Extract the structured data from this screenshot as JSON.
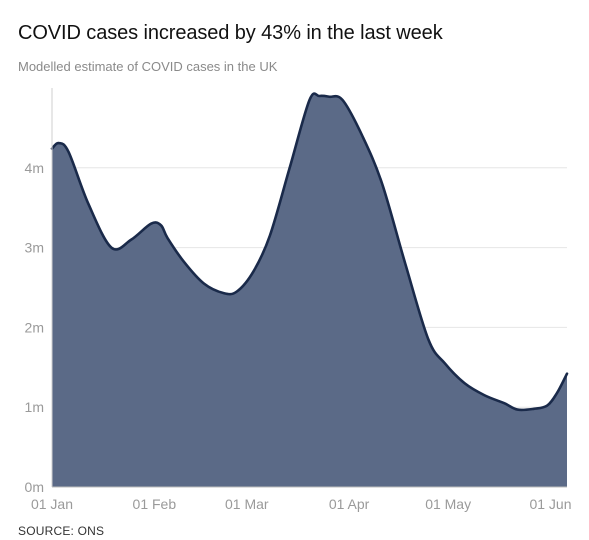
{
  "title": "COVID cases increased by 43% in the last week",
  "subtitle": "Modelled estimate of COVID cases in the UK",
  "source": "SOURCE: ONS",
  "chart_data": {
    "type": "area",
    "title": "COVID cases increased by 43% in the last week",
    "subtitle": "Modelled estimate of COVID cases in the UK",
    "xlabel": "",
    "ylabel": "",
    "xlim": [
      "2022-01-01",
      "2022-06-06"
    ],
    "ylim": [
      0,
      5.0
    ],
    "y_unit": "m",
    "y_ticks": [
      0,
      1,
      2,
      3,
      4
    ],
    "y_tick_labels": [
      "0m",
      "1m",
      "2m",
      "3m",
      "4m"
    ],
    "x_tick_dates": [
      "2022-01-01",
      "2022-02-01",
      "2022-03-01",
      "2022-04-01",
      "2022-05-01",
      "2022-06-01"
    ],
    "x_tick_labels": [
      "01 Jan",
      "01 Feb",
      "01 Mar",
      "01 Apr",
      "01 May",
      "01 Jun"
    ],
    "grid": true,
    "fill_color": "#5b6a87",
    "line_color": "#1a2a4a",
    "series": [
      {
        "x": [
          "2022-01-01",
          "2022-01-03",
          "2022-01-06",
          "2022-01-12",
          "2022-01-19",
          "2022-01-25",
          "2022-01-31",
          "2022-02-03",
          "2022-02-05",
          "2022-02-10",
          "2022-02-16",
          "2022-02-22",
          "2022-02-26",
          "2022-03-03",
          "2022-03-08",
          "2022-03-14",
          "2022-03-20",
          "2022-03-23",
          "2022-03-26",
          "2022-03-30",
          "2022-04-05",
          "2022-04-11",
          "2022-04-18",
          "2022-04-25",
          "2022-04-30",
          "2022-05-06",
          "2022-05-12",
          "2022-05-18",
          "2022-05-22",
          "2022-05-27",
          "2022-05-31",
          "2022-06-03",
          "2022-06-06"
        ],
        "values": [
          4.24,
          4.31,
          4.2,
          3.55,
          3.0,
          3.1,
          3.3,
          3.28,
          3.12,
          2.82,
          2.55,
          2.43,
          2.45,
          2.7,
          3.15,
          4.0,
          4.85,
          4.9,
          4.89,
          4.85,
          4.4,
          3.8,
          2.8,
          1.85,
          1.55,
          1.3,
          1.15,
          1.05,
          0.97,
          0.98,
          1.02,
          1.18,
          1.42
        ]
      }
    ]
  }
}
